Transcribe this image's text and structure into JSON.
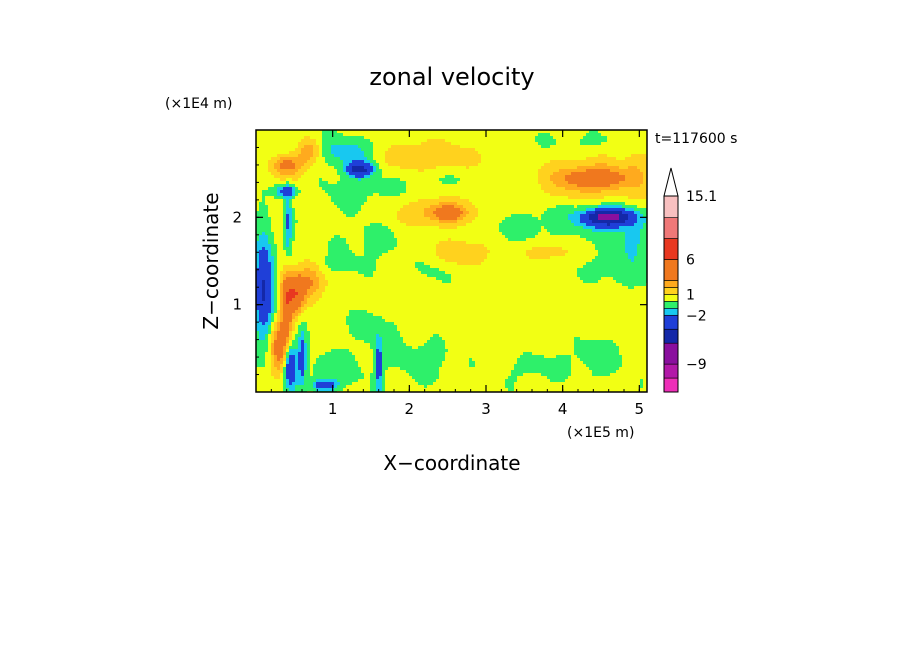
{
  "chart_data": {
    "type": "heatmap",
    "title": "zonal velocity",
    "xlabel": "X−coordinate",
    "ylabel": "Z−coordinate",
    "x_unit": "(×1E5 m)",
    "y_unit": "(×1E4 m)",
    "time_label": "t=117600 s",
    "x_ticks": [
      "1",
      "2",
      "3",
      "4",
      "5"
    ],
    "y_ticks": [
      "1",
      "2"
    ],
    "xlim": [
      0,
      5.1
    ],
    "ylim": [
      0,
      3.0
    ],
    "grid": false,
    "colorbar": {
      "labels": [
        "15.1",
        "6",
        "1",
        "−2",
        "−9"
      ],
      "label_values": [
        15.1,
        6,
        1,
        -2,
        -9
      ],
      "bands": [
        {
          "from": -13,
          "to": -11,
          "color": "#ee2fb8"
        },
        {
          "from": -11,
          "to": -9,
          "color": "#b218a8"
        },
        {
          "from": -9,
          "to": -6,
          "color": "#8a0f9e"
        },
        {
          "from": -6,
          "to": -4,
          "color": "#1428a8"
        },
        {
          "from": -4,
          "to": -2,
          "color": "#1f3fd8"
        },
        {
          "from": -2,
          "to": -1,
          "color": "#18c8f0"
        },
        {
          "from": -1,
          "to": 0,
          "color": "#2ef06a"
        },
        {
          "from": 0,
          "to": 1,
          "color": "#f2ff14"
        },
        {
          "from": 1,
          "to": 2,
          "color": "#ffd21e"
        },
        {
          "from": 2,
          "to": 3,
          "color": "#ffaa1e"
        },
        {
          "from": 3,
          "to": 6,
          "color": "#f0781e"
        },
        {
          "from": 6,
          "to": 9,
          "color": "#e83820"
        },
        {
          "from": 9,
          "to": 12,
          "color": "#f07878"
        },
        {
          "from": 12,
          "to": 15.1,
          "color": "#f8c0c0"
        }
      ],
      "over_color": "#ffffff"
    },
    "regions": [
      {
        "x": 0.1,
        "z": 1.2,
        "rx": 0.12,
        "rz": 0.55,
        "v": -4.5
      },
      {
        "x": 0.3,
        "z": 0.5,
        "rx": 0.12,
        "rz": 0.3,
        "v": 3.5
      },
      {
        "x": 0.4,
        "z": 1.0,
        "rx": 0.08,
        "rz": 0.4,
        "v": 4.5
      },
      {
        "x": 0.52,
        "z": 1.1,
        "rx": 0.1,
        "rz": 0.2,
        "v": 4.0
      },
      {
        "x": 0.68,
        "z": 1.25,
        "rx": 0.22,
        "rz": 0.22,
        "v": 3.0
      },
      {
        "x": 0.45,
        "z": 0.3,
        "rx": 0.08,
        "rz": 0.25,
        "v": -4.5
      },
      {
        "x": 0.6,
        "z": 0.4,
        "rx": 0.05,
        "rz": 0.3,
        "v": -3.0
      },
      {
        "x": 0.42,
        "z": 1.95,
        "rx": 0.05,
        "rz": 0.4,
        "v": -2.5
      },
      {
        "x": 0.45,
        "z": 2.3,
        "rx": 0.25,
        "rz": 0.15,
        "v": 1.5
      },
      {
        "x": 0.4,
        "z": 2.3,
        "rx": 0.16,
        "rz": 0.08,
        "v": -4.5
      },
      {
        "x": 0.4,
        "z": 2.6,
        "rx": 0.2,
        "rz": 0.12,
        "v": 3.5
      },
      {
        "x": 1.2,
        "z": 2.75,
        "rx": 0.4,
        "rz": 0.15,
        "v": -2.0
      },
      {
        "x": 1.35,
        "z": 2.55,
        "rx": 0.18,
        "rz": 0.09,
        "v": -5.0
      },
      {
        "x": 0.7,
        "z": 2.75,
        "rx": 0.15,
        "rz": 0.15,
        "v": 2.5
      },
      {
        "x": 1.4,
        "z": 2.3,
        "rx": 0.6,
        "rz": 0.2,
        "v": -0.6
      },
      {
        "x": 2.4,
        "z": 2.05,
        "rx": 0.6,
        "rz": 0.18,
        "v": 2.0
      },
      {
        "x": 2.5,
        "z": 2.05,
        "rx": 0.2,
        "rz": 0.09,
        "v": 2.6
      },
      {
        "x": 2.2,
        "z": 2.7,
        "rx": 0.8,
        "rz": 0.2,
        "v": 1.5
      },
      {
        "x": 2.9,
        "z": 2.45,
        "rx": 0.9,
        "rz": 0.1,
        "v": -0.5
      },
      {
        "x": 3.3,
        "z": 1.9,
        "rx": 0.8,
        "rz": 0.2,
        "v": -0.6
      },
      {
        "x": 3.8,
        "z": 2.1,
        "rx": 0.3,
        "rz": 0.15,
        "v": -0.5
      },
      {
        "x": 4.4,
        "z": 2.4,
        "rx": 0.9,
        "rz": 0.35,
        "v": 1.5
      },
      {
        "x": 4.4,
        "z": 2.45,
        "rx": 0.45,
        "rz": 0.12,
        "v": 3.0
      },
      {
        "x": 4.55,
        "z": 2.0,
        "rx": 0.45,
        "rz": 0.17,
        "v": -2.5
      },
      {
        "x": 4.6,
        "z": 2.0,
        "rx": 0.3,
        "rz": 0.09,
        "v": -5.5
      },
      {
        "x": 4.6,
        "z": 1.35,
        "rx": 0.6,
        "rz": 0.2,
        "v": -0.6
      },
      {
        "x": 4.9,
        "z": 1.7,
        "rx": 0.2,
        "rz": 0.25,
        "v": -1.5
      },
      {
        "x": 4.3,
        "z": 2.85,
        "rx": 0.7,
        "rz": 0.12,
        "v": -0.6
      },
      {
        "x": 1.5,
        "z": 1.75,
        "rx": 0.4,
        "rz": 0.25,
        "v": -0.5
      },
      {
        "x": 1.55,
        "z": 0.75,
        "rx": 0.3,
        "rz": 0.25,
        "v": -0.6
      },
      {
        "x": 1.6,
        "z": 0.3,
        "rx": 0.05,
        "rz": 0.3,
        "v": -3.0
      },
      {
        "x": 1.0,
        "z": 0.25,
        "rx": 0.4,
        "rz": 0.2,
        "v": -0.7
      },
      {
        "x": 0.9,
        "z": 0.08,
        "rx": 0.15,
        "rz": 0.06,
        "v": -4.0
      },
      {
        "x": 2.2,
        "z": 0.4,
        "rx": 0.5,
        "rz": 0.25,
        "v": -0.6
      },
      {
        "x": 2.4,
        "z": 1.4,
        "rx": 0.25,
        "rz": 0.15,
        "v": -0.6
      },
      {
        "x": 2.8,
        "z": 1.0,
        "rx": 0.35,
        "rz": 0.2,
        "v": 0.5
      },
      {
        "x": 3.2,
        "z": 0.7,
        "rx": 0.8,
        "rz": 0.3,
        "v": 0.5
      },
      {
        "x": 3.6,
        "z": 0.3,
        "rx": 0.3,
        "rz": 0.18,
        "v": -0.6
      },
      {
        "x": 4.4,
        "z": 0.4,
        "rx": 0.4,
        "rz": 0.25,
        "v": -0.6
      },
      {
        "x": 4.7,
        "z": 0.9,
        "rx": 0.3,
        "rz": 0.2,
        "v": 0.4
      },
      {
        "x": 4.2,
        "z": 1.2,
        "rx": 0.4,
        "rz": 0.2,
        "v": 0.4
      },
      {
        "x": 1.0,
        "z": 1.45,
        "rx": 0.35,
        "rz": 0.12,
        "v": -0.6
      },
      {
        "x": 1.8,
        "z": 1.1,
        "rx": 0.4,
        "rz": 0.18,
        "v": 0.4
      },
      {
        "x": 2.7,
        "z": 1.6,
        "rx": 0.4,
        "rz": 0.2,
        "v": 1.5
      },
      {
        "x": 3.8,
        "z": 1.6,
        "rx": 0.3,
        "rz": 0.1,
        "v": 1.5
      },
      {
        "x": 4.95,
        "z": 2.6,
        "rx": 0.15,
        "rz": 0.25,
        "v": 0.8
      }
    ]
  }
}
